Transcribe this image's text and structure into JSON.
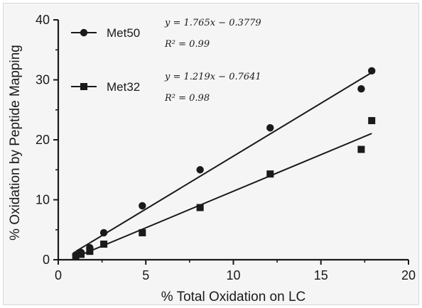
{
  "chart_data": {
    "type": "scatter",
    "title": "",
    "xlabel": "% Total Oxidation on LC",
    "ylabel": "% Oxidation by Peptide Mapping",
    "xlim": [
      0,
      20
    ],
    "ylim": [
      0,
      40
    ],
    "xticks": [
      "0",
      "5",
      "10",
      "15",
      "20"
    ],
    "yticks": [
      "0",
      "10",
      "20",
      "30",
      "40"
    ],
    "grid": false,
    "legend_position": "top-left",
    "series": [
      {
        "name": "Met50",
        "marker": "circle",
        "color": "#1a1a1a",
        "x": [
          1.0,
          1.3,
          1.8,
          2.6,
          4.8,
          8.1,
          12.1,
          17.3,
          17.9
        ],
        "y": [
          0.8,
          1.2,
          2.0,
          4.5,
          9.0,
          15.0,
          22.0,
          28.5,
          31.5
        ],
        "fit": {
          "slope": 1.765,
          "intercept": -0.3779,
          "x_range": [
            1.0,
            17.9
          ]
        },
        "equation_line1": "y = 1.765x − 0.3779",
        "equation_line2": "R² = 0.99"
      },
      {
        "name": "Met32",
        "marker": "square",
        "color": "#1a1a1a",
        "x": [
          1.0,
          1.3,
          1.8,
          2.6,
          4.8,
          8.1,
          12.1,
          17.3,
          17.9
        ],
        "y": [
          0.5,
          0.9,
          1.4,
          2.6,
          4.5,
          8.7,
          14.3,
          18.4,
          23.2
        ],
        "fit": {
          "slope": 1.219,
          "intercept": -0.7641,
          "x_range": [
            1.0,
            17.9
          ]
        },
        "equation_line1": "y = 1.219x − 0.7641",
        "equation_line2": "R² = 0.98"
      }
    ]
  }
}
